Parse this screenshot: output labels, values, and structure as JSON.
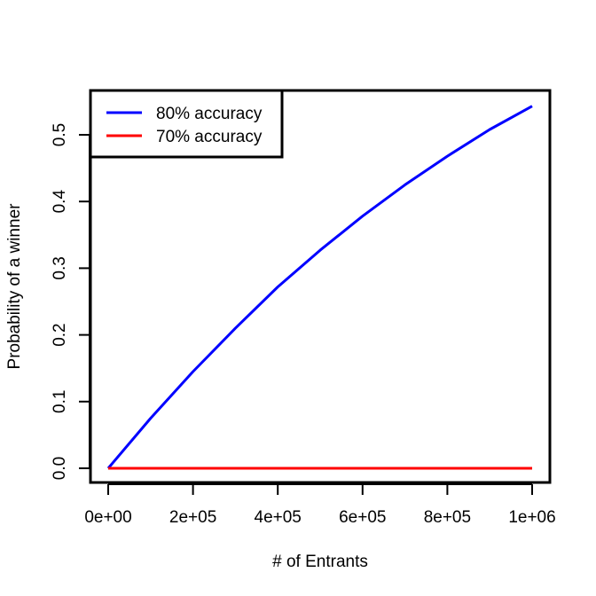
{
  "chart_data": {
    "type": "line",
    "title": "",
    "xlabel": "# of Entrants",
    "ylabel": "Probability of a winner",
    "xlim": [
      0,
      1000000
    ],
    "ylim": [
      0,
      0.55
    ],
    "x_ticks": [
      0,
      200000,
      400000,
      600000,
      800000,
      1000000
    ],
    "x_tick_labels": [
      "0e+00",
      "2e+05",
      "4e+05",
      "6e+05",
      "8e+05",
      "1e+06"
    ],
    "y_ticks": [
      0,
      0.1,
      0.2,
      0.3,
      0.4,
      0.5
    ],
    "y_tick_labels": [
      "0.0",
      "0.1",
      "0.2",
      "0.3",
      "0.4",
      "0.5"
    ],
    "grid": false,
    "legend_position": "top-left",
    "x": [
      0,
      100000,
      200000,
      300000,
      400000,
      500000,
      600000,
      700000,
      800000,
      900000,
      1000000
    ],
    "series": [
      {
        "name": "80% accuracy",
        "color": "#0000ff",
        "values": [
          0,
          0.075,
          0.145,
          0.21,
          0.272,
          0.327,
          0.378,
          0.425,
          0.468,
          0.508,
          0.543
        ]
      },
      {
        "name": "70% accuracy",
        "color": "#ff0000",
        "values": [
          0,
          0,
          0,
          0,
          0,
          0,
          0,
          0,
          0,
          0,
          0
        ]
      }
    ]
  }
}
